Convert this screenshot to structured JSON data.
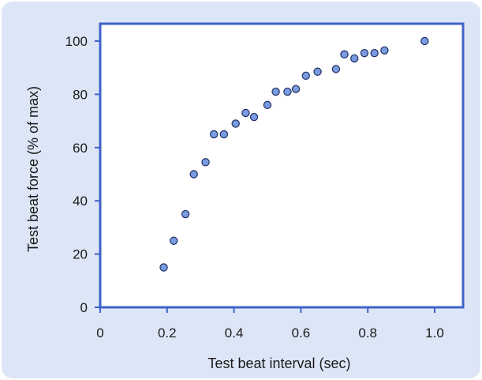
{
  "colors": {
    "background": "#dde6f6",
    "axis": "#3f63c8",
    "marker_fill": "#7a9be0",
    "marker_edge": "#1e2f63"
  },
  "chart_data": {
    "type": "scatter",
    "title": "",
    "xlabel": "Test beat interval (sec)",
    "ylabel": "Test beat force (% of max)",
    "xlim": [
      0,
      1.0
    ],
    "ylim": [
      0,
      100
    ],
    "x_ticks": [
      "0",
      "0.2",
      "0.4",
      "0.6",
      "0.8",
      "1.0"
    ],
    "y_ticks": [
      "0",
      "20",
      "40",
      "60",
      "80",
      "100"
    ],
    "grid": false,
    "legend": "none",
    "points": [
      {
        "x": 0.19,
        "y": 15
      },
      {
        "x": 0.22,
        "y": 25
      },
      {
        "x": 0.255,
        "y": 35
      },
      {
        "x": 0.28,
        "y": 50
      },
      {
        "x": 0.315,
        "y": 54.5
      },
      {
        "x": 0.34,
        "y": 65
      },
      {
        "x": 0.37,
        "y": 65
      },
      {
        "x": 0.405,
        "y": 69
      },
      {
        "x": 0.435,
        "y": 73
      },
      {
        "x": 0.46,
        "y": 71.5
      },
      {
        "x": 0.5,
        "y": 76
      },
      {
        "x": 0.525,
        "y": 81
      },
      {
        "x": 0.56,
        "y": 81
      },
      {
        "x": 0.585,
        "y": 82
      },
      {
        "x": 0.615,
        "y": 87
      },
      {
        "x": 0.65,
        "y": 88.5
      },
      {
        "x": 0.705,
        "y": 89.5
      },
      {
        "x": 0.73,
        "y": 95
      },
      {
        "x": 0.76,
        "y": 93.5
      },
      {
        "x": 0.79,
        "y": 95.5
      },
      {
        "x": 0.82,
        "y": 95.5
      },
      {
        "x": 0.85,
        "y": 96.5
      },
      {
        "x": 0.97,
        "y": 100
      }
    ]
  }
}
